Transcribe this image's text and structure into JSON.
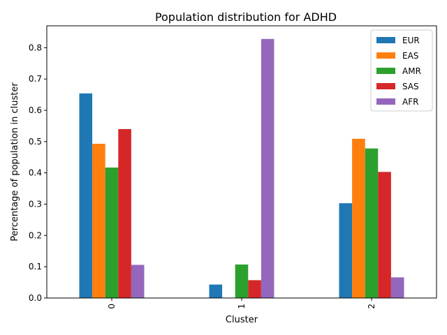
{
  "chart_data": {
    "type": "bar",
    "title": "Population distribution for ADHD",
    "xlabel": "Cluster",
    "ylabel": "Percentage of population in cluster",
    "categories": [
      "0",
      "1",
      "2"
    ],
    "series": [
      {
        "name": "EUR",
        "color": "#1f77b4",
        "values": [
          0.654,
          0.043,
          0.303
        ]
      },
      {
        "name": "EAS",
        "color": "#ff7f0e",
        "values": [
          0.493,
          0.0,
          0.509
        ]
      },
      {
        "name": "AMR",
        "color": "#2ca02c",
        "values": [
          0.417,
          0.107,
          0.478
        ]
      },
      {
        "name": "SAS",
        "color": "#d62728",
        "values": [
          0.54,
          0.057,
          0.403
        ]
      },
      {
        "name": "AFR",
        "color": "#9467bd",
        "values": [
          0.106,
          0.828,
          0.066
        ]
      }
    ],
    "ylim": [
      0,
      0.87
    ],
    "yticks": [
      "0.0",
      "0.1",
      "0.2",
      "0.3",
      "0.4",
      "0.5",
      "0.6",
      "0.7",
      "0.8"
    ],
    "grid": false,
    "legend": "top-right"
  }
}
